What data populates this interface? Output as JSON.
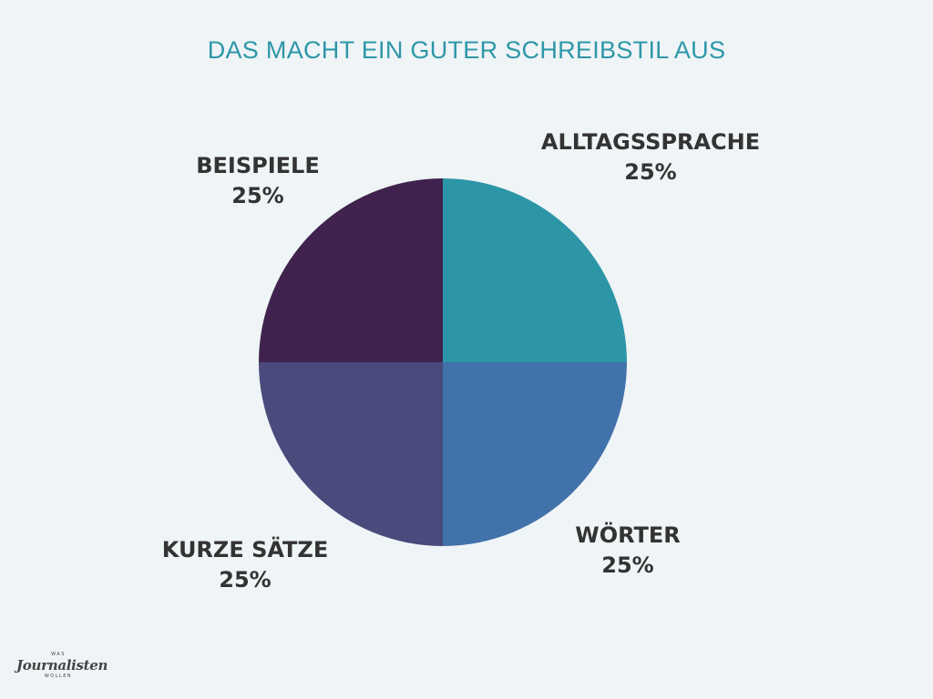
{
  "chart_data": {
    "type": "pie",
    "title": "DAS MACHT EIN GUTER SCHREIBSTIL AUS",
    "slices": [
      {
        "label": "ALLTAGSSPRACHE",
        "value": 25,
        "value_label": "25%",
        "color": "#2c96a7"
      },
      {
        "label": "WÖRTER",
        "value": 25,
        "value_label": "25%",
        "color": "#4272aa"
      },
      {
        "label": "KURZE SÄTZE",
        "value": 25,
        "value_label": "25%",
        "color": "#4a4a7c"
      },
      {
        "label": "BEISPIELE",
        "value": 25,
        "value_label": "25%",
        "color": "#3f234e"
      }
    ],
    "legend": "none",
    "grid": false
  },
  "logo": {
    "top_text": "WAS",
    "main_text": "Journalisten",
    "bottom_text": "WOLLEN"
  }
}
